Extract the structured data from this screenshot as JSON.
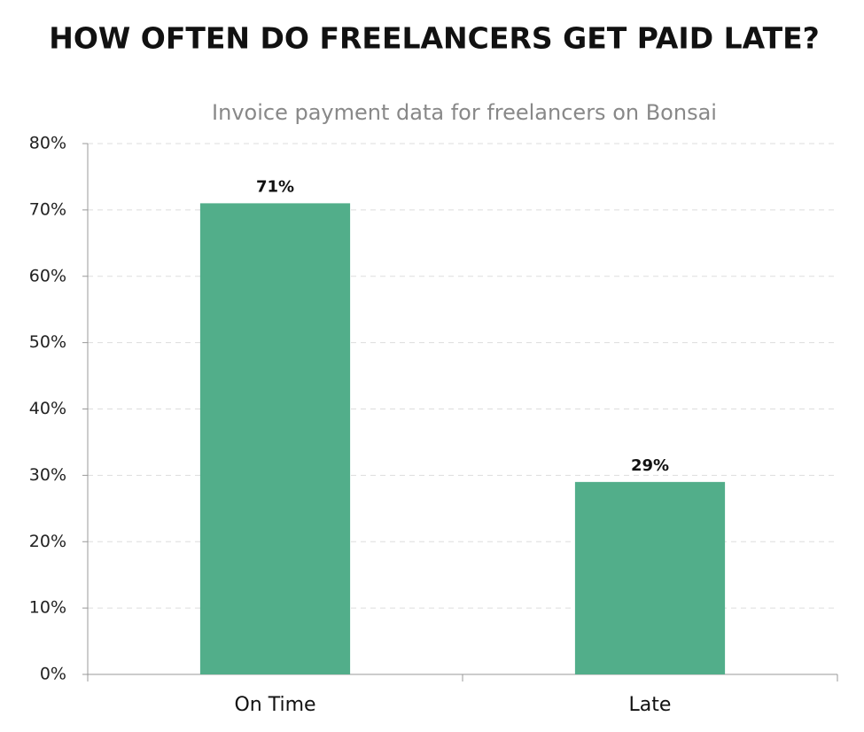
{
  "chart_data": {
    "type": "bar",
    "title": "HOW OFTEN DO FREELANCERS GET PAID LATE?",
    "subtitle": "Invoice payment data for freelancers on Bonsai",
    "categories": [
      "On Time",
      "Late"
    ],
    "values": [
      71,
      29
    ],
    "value_labels": [
      "71%",
      "29%"
    ],
    "color": "#52ae8a",
    "ylim": [
      0,
      80
    ],
    "yticks": [
      {
        "value": 0,
        "label": "0%"
      },
      {
        "value": 10,
        "label": "10%"
      },
      {
        "value": 20,
        "label": "20%"
      },
      {
        "value": 30,
        "label": "30%"
      },
      {
        "value": 40,
        "label": "40%"
      },
      {
        "value": 50,
        "label": "50%"
      },
      {
        "value": 60,
        "label": "60%"
      },
      {
        "value": 70,
        "label": "70%"
      },
      {
        "value": 80,
        "label": "80%"
      }
    ],
    "grid": true
  }
}
